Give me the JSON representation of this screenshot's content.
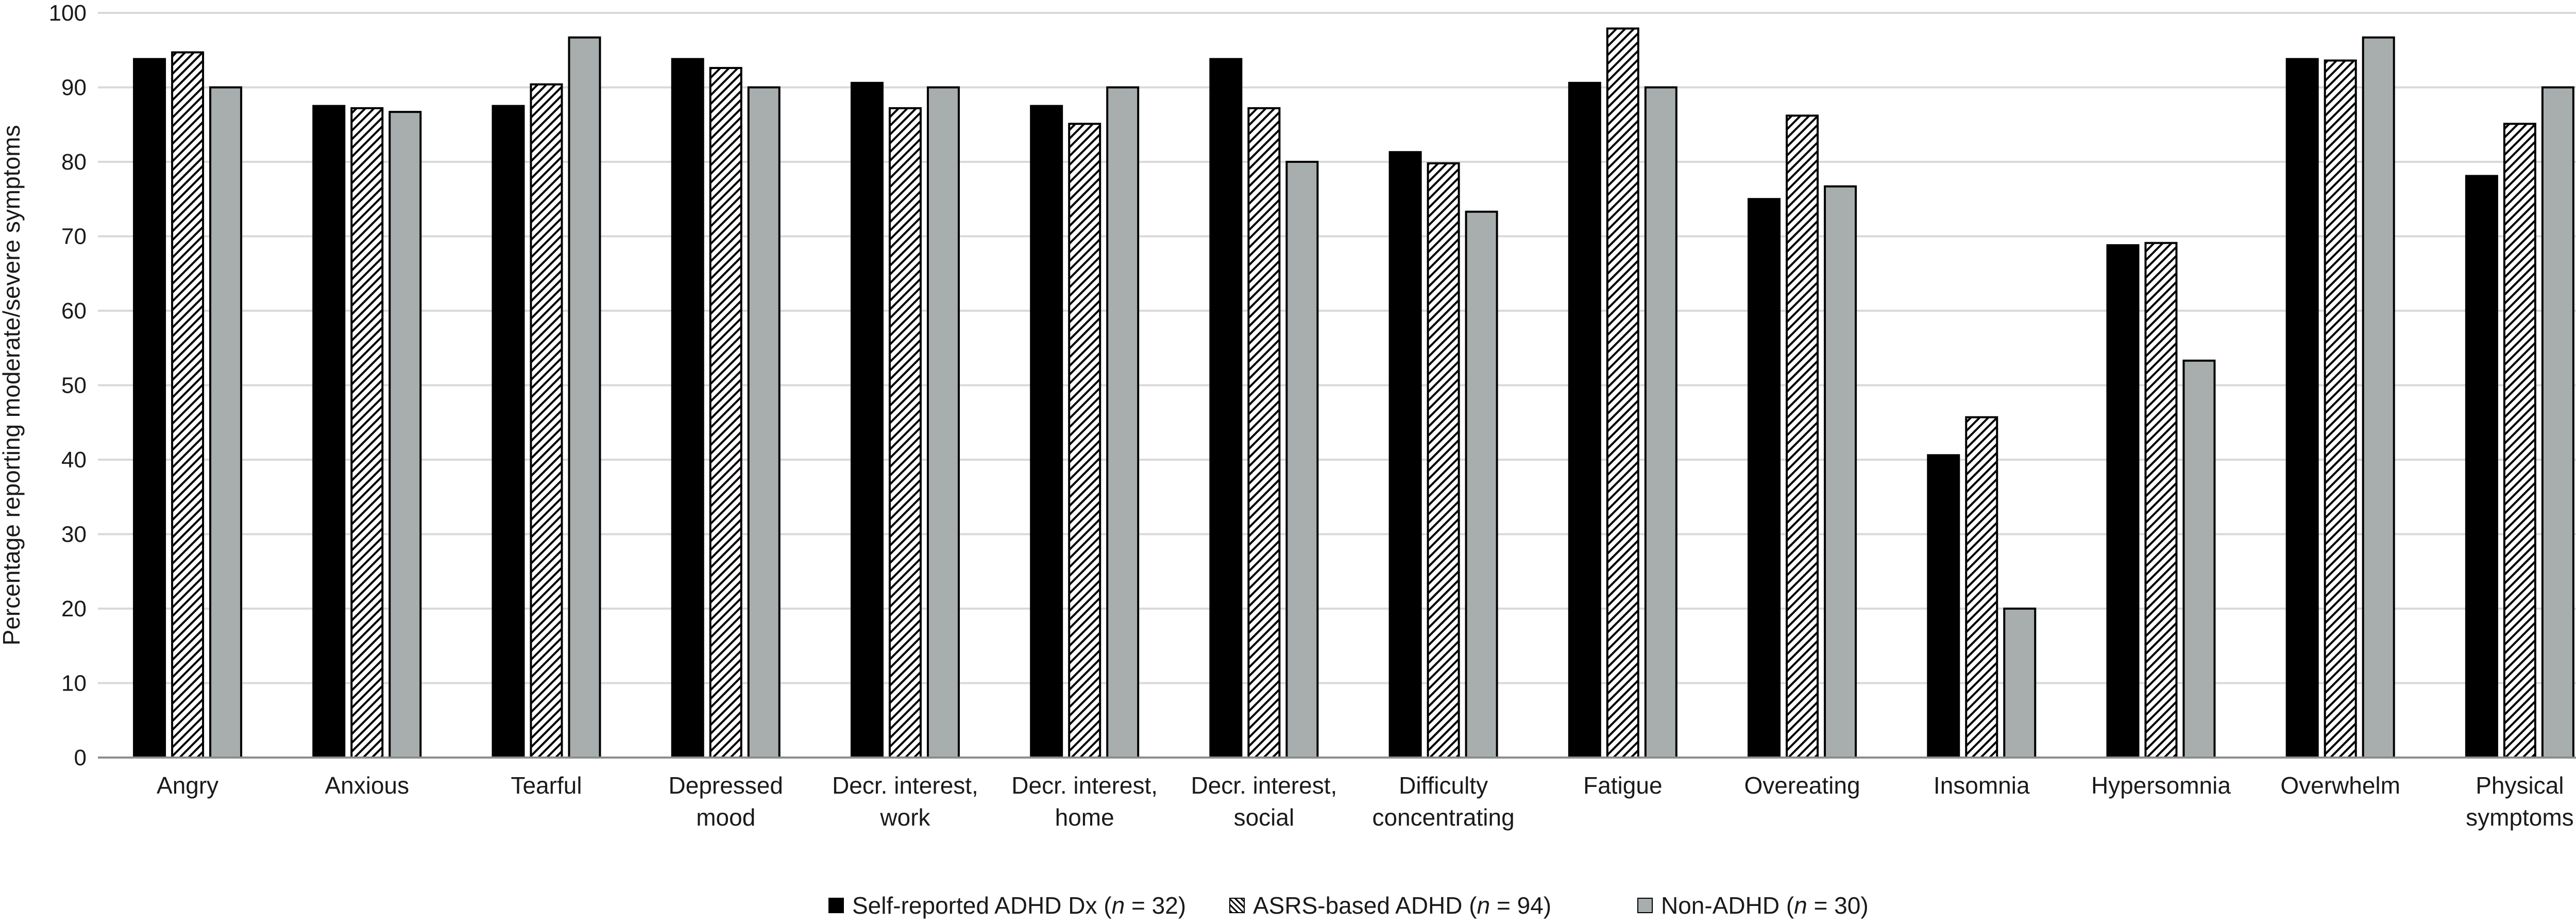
{
  "chart_data": {
    "type": "bar",
    "ylabel": "Percentage reporting moderate/severe symptoms",
    "xlabel": "",
    "ylim": [
      0,
      100
    ],
    "yticks": [
      0,
      10,
      20,
      30,
      40,
      50,
      60,
      70,
      80,
      90,
      100
    ],
    "grid": true,
    "legend_position": "bottom",
    "categories": [
      [
        "Angry"
      ],
      [
        "Anxious"
      ],
      [
        "Tearful"
      ],
      [
        "Depressed",
        "mood"
      ],
      [
        "Decr. interest,",
        "work"
      ],
      [
        "Decr. interest,",
        "home"
      ],
      [
        "Decr. interest,",
        "social"
      ],
      [
        "Difficulty",
        "concentrating"
      ],
      [
        "Fatigue"
      ],
      [
        "Overeating"
      ],
      [
        "Insomnia"
      ],
      [
        "Hypersomnia"
      ],
      [
        "Overwhelm"
      ],
      [
        "Physical",
        "symptoms"
      ]
    ],
    "series": [
      {
        "name": "Self-reported ADHD Dx (n = 32)",
        "fill": "solid-black",
        "color": "#000000",
        "values": [
          93.8,
          87.5,
          87.5,
          93.8,
          90.6,
          87.5,
          93.8,
          81.3,
          90.6,
          75.0,
          40.6,
          68.8,
          93.8,
          78.1
        ]
      },
      {
        "name": "ASRS-based ADHD (n = 94)",
        "fill": "diagonal-hatch",
        "color": "#000000",
        "values": [
          94.7,
          87.2,
          90.4,
          92.6,
          87.2,
          85.1,
          87.2,
          79.8,
          97.9,
          86.2,
          45.7,
          69.1,
          93.6,
          85.1
        ]
      },
      {
        "name": "Non-ADHD (n = 30)",
        "fill": "gray",
        "color": "#a8aeae",
        "values": [
          90.0,
          86.7,
          96.7,
          90.0,
          90.0,
          90.0,
          80.0,
          73.3,
          90.0,
          76.7,
          20.0,
          53.3,
          96.7,
          90.0
        ]
      }
    ],
    "legend": [
      {
        "pre": "Self-reported ADHD Dx (",
        "italic": "n",
        "post": " = 32)"
      },
      {
        "pre": "ASRS-based ADHD (",
        "italic": "n",
        "post": " = 94)"
      },
      {
        "pre": "Non-ADHD (",
        "italic": "n",
        "post": " = 30)"
      }
    ],
    "colors": {
      "grid": "#d9d9d9",
      "axis": "#8c8c8c",
      "gray_fill": "#a8aeae"
    }
  }
}
